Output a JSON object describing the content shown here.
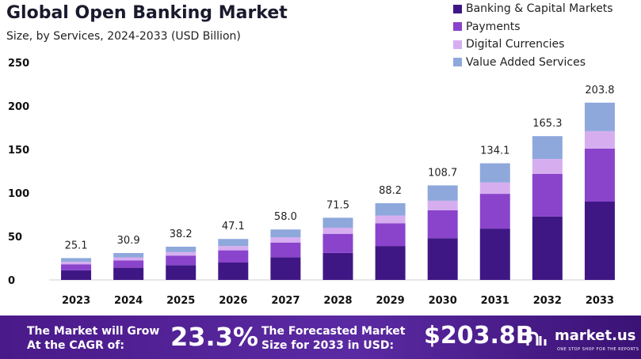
{
  "header": {
    "title": "Global Open Banking Market",
    "subtitle": "Size, by Services, 2024-2033 (USD Billion)"
  },
  "legend": [
    {
      "label": "Banking & Capital Markets",
      "color": "#3f1785"
    },
    {
      "label": "Payments",
      "color": "#8a44cc"
    },
    {
      "label": "Digital Currencies",
      "color": "#d6aef0"
    },
    {
      "label": "Value Added Services",
      "color": "#8ea8dc"
    }
  ],
  "chart_data": {
    "type": "bar",
    "stacked": true,
    "title": "Global Open Banking Market",
    "subtitle": "Size, by Services, 2024-2033 (USD Billion)",
    "categories": [
      "2023",
      "2024",
      "2025",
      "2026",
      "2027",
      "2028",
      "2029",
      "2030",
      "2031",
      "2032",
      "2033"
    ],
    "totals": [
      "25.1",
      "30.9",
      "38.2",
      "47.1",
      "58.0",
      "71.5",
      "88.2",
      "108.7",
      "134.1",
      "165.3",
      "203.8"
    ],
    "series": [
      {
        "name": "Banking & Capital Markets",
        "color": "#3f1785",
        "values": [
          11,
          14,
          17,
          20,
          26,
          31,
          39,
          48,
          59,
          73,
          90
        ]
      },
      {
        "name": "Payments",
        "color": "#8a44cc",
        "values": [
          7,
          8.5,
          11,
          14,
          17,
          22,
          26,
          32,
          40,
          49,
          61
        ]
      },
      {
        "name": "Digital Currencies",
        "color": "#d6aef0",
        "values": [
          3,
          3.4,
          4,
          5,
          6,
          7,
          9,
          11,
          13,
          17,
          20
        ]
      },
      {
        "name": "Value Added Services",
        "color": "#8ea8dc",
        "values": [
          4.1,
          5,
          6.2,
          8.1,
          9,
          11.5,
          14.2,
          17.7,
          22.1,
          26.3,
          32.8
        ]
      }
    ],
    "yticks": [
      "0",
      "50",
      "100",
      "150",
      "200",
      "250"
    ],
    "ylim": [
      0,
      250
    ],
    "grid": false,
    "legend_position": "top-right"
  },
  "footer": {
    "cagr_line1": "The Market will Grow",
    "cagr_line2": "At the CAGR of:",
    "cagr_value": "23.3%",
    "forecast_line1": "The Forecasted Market",
    "forecast_line2": "Size for 2033 in USD:",
    "forecast_value": "$203.8B",
    "logo": "market.us",
    "tagline": "ONE STOP SHOP FOR THE REPORTS"
  }
}
